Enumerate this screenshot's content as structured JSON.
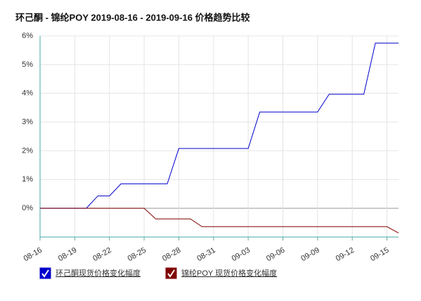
{
  "chart_data": {
    "type": "line",
    "title": "环己酮 - 锦纶POY 2019-08-16 - 2019-09-16 价格趋势比较",
    "categories": [
      "08-16",
      null,
      null,
      "08-19",
      null,
      null,
      "08-22",
      null,
      null,
      "08-25",
      null,
      null,
      "08-28",
      null,
      null,
      "08-31",
      null,
      null,
      "09-03",
      null,
      null,
      "09-06",
      null,
      null,
      "09-09",
      null,
      null,
      "09-12",
      null,
      null,
      "09-15",
      null
    ],
    "series": [
      {
        "name": "环己酮现货价格变化幅度",
        "color": "#0000cc",
        "values": [
          0,
          0,
          0,
          0,
          0,
          0.43,
          0.43,
          0.85,
          0.85,
          0.85,
          0.85,
          0.85,
          2.08,
          2.08,
          2.08,
          2.08,
          2.08,
          2.08,
          2.08,
          3.35,
          3.35,
          3.35,
          3.35,
          3.35,
          3.35,
          3.97,
          3.97,
          3.97,
          3.97,
          5.75,
          5.75,
          5.75
        ]
      },
      {
        "name": "锦纶POY 现货价格变化幅度",
        "color": "#800000",
        "values": [
          0,
          0,
          0,
          0,
          0,
          0,
          0,
          0,
          0,
          0,
          -0.37,
          -0.37,
          -0.37,
          -0.37,
          -0.64,
          -0.64,
          -0.64,
          -0.64,
          -0.64,
          -0.64,
          -0.64,
          -0.64,
          -0.64,
          -0.64,
          -0.64,
          -0.64,
          -0.64,
          -0.64,
          -0.64,
          -0.64,
          -0.64,
          -0.86
        ]
      }
    ],
    "ylim": [
      -1,
      6
    ],
    "yticks": [
      {
        "value": 0,
        "label": "0%"
      },
      {
        "value": 1,
        "label": "1%"
      },
      {
        "value": 2,
        "label": "2%"
      },
      {
        "value": 3,
        "label": "3%"
      },
      {
        "value": 4,
        "label": "4%"
      },
      {
        "value": 5,
        "label": "5%"
      },
      {
        "value": 6,
        "label": "6%"
      }
    ],
    "grid": true
  }
}
